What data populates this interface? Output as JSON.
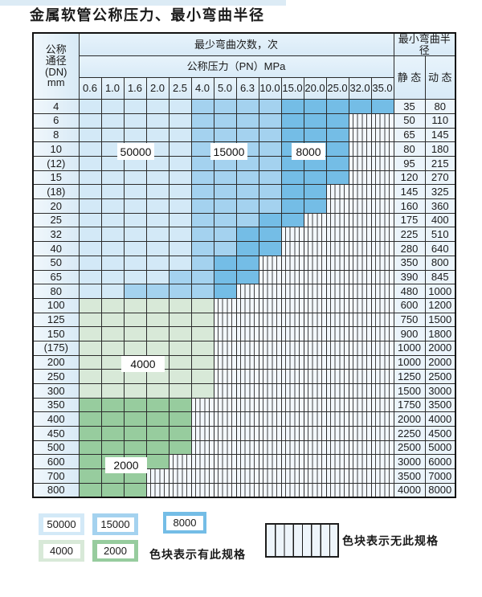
{
  "title": "金属软管公称压力、最小弯曲半径",
  "colors": {
    "cycles_50000": "#d3e9f7",
    "cycles_15000": "#a4d2ef",
    "cycles_8000": "#74bde6",
    "cycles_4000": "#d8e9d8",
    "cycles_2000": "#97cc9e"
  },
  "zone_labels": {
    "b1": "50000",
    "b2": "15000",
    "b3": "8000",
    "g1": "4000",
    "g2": "2000"
  },
  "table": {
    "dn_header_lines": [
      "公称",
      "通径",
      "(DN)",
      "mm"
    ],
    "bend_cycles_header": "最少弯曲次数，次",
    "pressure_header": "公称压力（PN）MPa",
    "pressure_columns": [
      "0.6",
      "1.0",
      "1.6",
      "2.0",
      "2.5",
      "4.0",
      "5.0",
      "6.3",
      "10.0",
      "15.0",
      "20.0",
      "25.0",
      "32.0",
      "35.0"
    ],
    "radius_header": "最小弯曲半径",
    "static_header": "静 态",
    "dynamic_header": "动 态",
    "rows": [
      {
        "dn": "4",
        "zone": "blue",
        "last": 13,
        "med_from": 5,
        "dark_from": 9,
        "static": "35",
        "dynamic": "80"
      },
      {
        "dn": "6",
        "zone": "blue",
        "last": 11,
        "med_from": 5,
        "dark_from": 9,
        "static": "50",
        "dynamic": "110"
      },
      {
        "dn": "8",
        "zone": "blue",
        "last": 11,
        "med_from": 5,
        "dark_from": 9,
        "static": "65",
        "dynamic": "145"
      },
      {
        "dn": "10",
        "zone": "blue",
        "last": 11,
        "med_from": 5,
        "dark_from": 9,
        "static": "80",
        "dynamic": "180"
      },
      {
        "dn": "(12)",
        "zone": "blue",
        "last": 11,
        "med_from": 5,
        "dark_from": 9,
        "static": "95",
        "dynamic": "215"
      },
      {
        "dn": "15",
        "zone": "blue",
        "last": 11,
        "med_from": 5,
        "dark_from": 9,
        "static": "120",
        "dynamic": "270"
      },
      {
        "dn": "(18)",
        "zone": "blue",
        "last": 10,
        "med_from": 5,
        "dark_from": 9,
        "static": "145",
        "dynamic": "325"
      },
      {
        "dn": "20",
        "zone": "blue",
        "last": 10,
        "med_from": 5,
        "dark_from": 9,
        "static": "160",
        "dynamic": "360"
      },
      {
        "dn": "25",
        "zone": "blue",
        "last": 9,
        "med_from": 5,
        "dark_from": 8,
        "static": "175",
        "dynamic": "400"
      },
      {
        "dn": "32",
        "zone": "blue",
        "last": 8,
        "med_from": 5,
        "dark_from": 7,
        "static": "225",
        "dynamic": "510"
      },
      {
        "dn": "40",
        "zone": "blue",
        "last": 8,
        "med_from": 5,
        "dark_from": 7,
        "static": "280",
        "dynamic": "640"
      },
      {
        "dn": "50",
        "zone": "blue",
        "last": 7,
        "med_from": 5,
        "dark_from": 6,
        "static": "350",
        "dynamic": "800"
      },
      {
        "dn": "65",
        "zone": "blue",
        "last": 7,
        "med_from": 4,
        "dark_from": 6,
        "static": "390",
        "dynamic": "845"
      },
      {
        "dn": "80",
        "zone": "blue",
        "last": 6,
        "med_from": 2,
        "dark_from": 6,
        "static": "480",
        "dynamic": "1000"
      },
      {
        "dn": "100",
        "zone": "green_light",
        "last": 5,
        "static": "600",
        "dynamic": "1200"
      },
      {
        "dn": "125",
        "zone": "green_light",
        "last": 5,
        "static": "750",
        "dynamic": "1500"
      },
      {
        "dn": "150",
        "zone": "green_light",
        "last": 5,
        "static": "900",
        "dynamic": "1800"
      },
      {
        "dn": "(175)",
        "zone": "green_light",
        "last": 5,
        "static": "1000",
        "dynamic": "2000"
      },
      {
        "dn": "200",
        "zone": "green_light",
        "last": 5,
        "static": "1000",
        "dynamic": "2000"
      },
      {
        "dn": "250",
        "zone": "green_light",
        "last": 5,
        "static": "1250",
        "dynamic": "2500"
      },
      {
        "dn": "300",
        "zone": "green_light",
        "last": 5,
        "static": "1500",
        "dynamic": "3000"
      },
      {
        "dn": "350",
        "zone": "green_dark",
        "last": 4,
        "static": "1750",
        "dynamic": "3500"
      },
      {
        "dn": "400",
        "zone": "green_dark",
        "last": 4,
        "static": "2000",
        "dynamic": "4000"
      },
      {
        "dn": "450",
        "zone": "green_dark",
        "last": 4,
        "static": "2250",
        "dynamic": "4500"
      },
      {
        "dn": "500",
        "zone": "green_dark",
        "last": 4,
        "static": "2500",
        "dynamic": "5000"
      },
      {
        "dn": "600",
        "zone": "green_dark",
        "last": 3,
        "static": "3000",
        "dynamic": "6000"
      },
      {
        "dn": "700",
        "zone": "green_dark",
        "last": 2,
        "static": "3500",
        "dynamic": "7000"
      },
      {
        "dn": "800",
        "zone": "green_dark",
        "last": 2,
        "static": "4000",
        "dynamic": "8000"
      }
    ]
  },
  "legend": {
    "available_text": "色块表示有此规格",
    "none_text": "色块表示无此规格"
  }
}
